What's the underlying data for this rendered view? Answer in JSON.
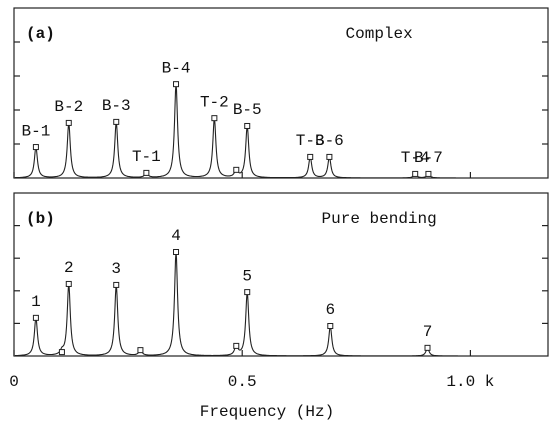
{
  "chart_data": [
    {
      "type": "line",
      "panel_label": "(a)",
      "title": "Complex",
      "x": [
        0.048,
        0.12,
        0.224,
        0.29,
        0.355,
        0.439,
        0.487,
        0.511,
        0.649,
        0.691,
        0.879,
        0.908
      ],
      "values": [
        0.91,
        1.62,
        1.65,
        0.15,
        2.76,
        1.76,
        0.24,
        1.53,
        0.62,
        0.62,
        0.12,
        0.12
      ],
      "point_labels": [
        "B-1",
        "B-2",
        "B-3",
        "T-1",
        "B-4",
        "T-2",
        null,
        "B-5",
        "T-3",
        "B-6",
        "T-4",
        "B-7"
      ],
      "xlim": [
        0,
        1.17
      ],
      "ylim": [
        0,
        5
      ],
      "xticks": [
        0,
        0.5,
        {
          "value": 1.0,
          "label": "1.0 k"
        }
      ],
      "yticks": [
        1,
        2,
        3,
        4
      ]
    },
    {
      "type": "line",
      "panel_label": "(b)",
      "title": "Pure bending",
      "x": [
        0.048,
        0.105,
        0.12,
        0.224,
        0.277,
        0.355,
        0.487,
        0.511,
        0.693,
        0.906
      ],
      "values": [
        1.17,
        0.12,
        2.21,
        2.18,
        0.18,
        3.19,
        0.31,
        1.96,
        0.92,
        0.25
      ],
      "point_labels": [
        "1",
        null,
        "2",
        "3",
        null,
        "4",
        null,
        "5",
        "6",
        "7"
      ],
      "xlim": [
        0,
        1.17
      ],
      "ylim": [
        0,
        5
      ],
      "xticks": [
        0,
        0.5,
        {
          "value": 1.0,
          "label": "1.0 k"
        }
      ],
      "yticks": [
        1,
        2,
        3,
        4
      ],
      "xlabel": "Frequency (Hz)"
    }
  ]
}
